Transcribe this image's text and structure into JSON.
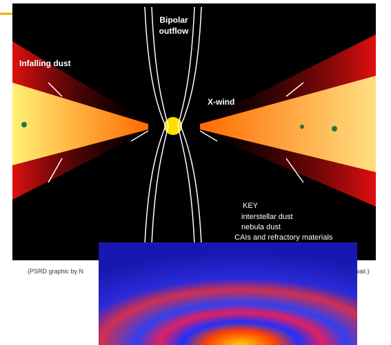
{
  "figure": {
    "labels": {
      "bipolar": "Bipolar",
      "outflow": "outflow",
      "infalling": "Infalling dust",
      "xwind": "X-wind"
    },
    "key": {
      "title": "KEY",
      "items": [
        "interstellar dust",
        "nebula dust",
        "CAIs and refractory materials"
      ]
    }
  },
  "caption": {
    "left": "(PSRD graphic by N",
    "right": "Hawaii.)"
  }
}
